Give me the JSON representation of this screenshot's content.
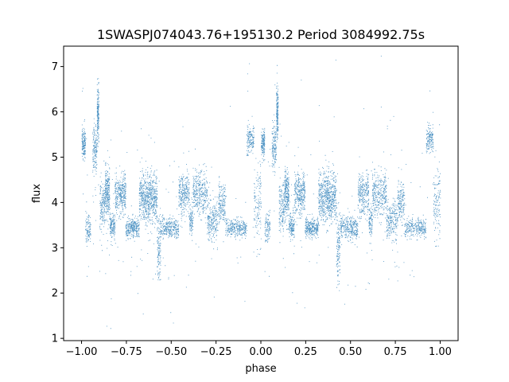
{
  "chart_data": {
    "type": "scatter",
    "title": "1SWASPJ074043.76+195130.2 Period 3084992.75s",
    "xlabel": "phase",
    "ylabel": "flux",
    "xlim": [
      -1.1,
      1.1
    ],
    "ylim": [
      0.95,
      7.45
    ],
    "xticks": [
      -1.0,
      -0.75,
      -0.5,
      -0.25,
      0.0,
      0.25,
      0.5,
      0.75,
      1.0
    ],
    "xtick_labels": [
      "−1.00",
      "−0.75",
      "−0.50",
      "−0.25",
      "0.00",
      "0.25",
      "0.50",
      "0.75",
      "1.00"
    ],
    "yticks": [
      1,
      2,
      3,
      4,
      5,
      6,
      7
    ],
    "ytick_labels": [
      "1",
      "2",
      "3",
      "4",
      "5",
      "6",
      "7"
    ],
    "grid": false,
    "marker_color": "#1f77b4",
    "x_range": [
      -1.0,
      1.0
    ],
    "repeats_with_period": 1.0,
    "clusters": [
      {
        "x": [
          0.0,
          0.02
        ],
        "center": 5.3,
        "spread": 0.3,
        "weight": 0.6
      },
      {
        "x": [
          0.02,
          0.05
        ],
        "center": 3.45,
        "spread": 0.3,
        "weight": 0.4
      },
      {
        "x": [
          0.06,
          0.085
        ],
        "center": 5.2,
        "spread": 0.45,
        "weight": 0.6
      },
      {
        "x": [
          0.085,
          0.095
        ],
        "center": 6.0,
        "spread": 0.55,
        "weight": 0.7
      },
      {
        "x": [
          0.1,
          0.13
        ],
        "center": 3.9,
        "spread": 0.5,
        "weight": 0.6
      },
      {
        "x": [
          0.13,
          0.155
        ],
        "center": 4.2,
        "spread": 0.45,
        "weight": 1.0
      },
      {
        "x": [
          0.155,
          0.185
        ],
        "center": 3.5,
        "spread": 0.25,
        "weight": 0.6
      },
      {
        "x": [
          0.185,
          0.245
        ],
        "center": 4.2,
        "spread": 0.4,
        "weight": 1.3
      },
      {
        "x": [
          0.245,
          0.32
        ],
        "center": 3.45,
        "spread": 0.2,
        "weight": 1.2
      },
      {
        "x": [
          0.32,
          0.36
        ],
        "center": 4.1,
        "spread": 0.45,
        "weight": 1.0
      },
      {
        "x": [
          0.36,
          0.42
        ],
        "center": 4.1,
        "spread": 0.5,
        "weight": 1.6
      },
      {
        "x": [
          0.42,
          0.44
        ],
        "center": 3.0,
        "spread": 0.7,
        "weight": 0.5
      },
      {
        "x": [
          0.44,
          0.54
        ],
        "center": 3.45,
        "spread": 0.22,
        "weight": 1.2
      },
      {
        "x": [
          0.54,
          0.6
        ],
        "center": 4.2,
        "spread": 0.45,
        "weight": 1.1
      },
      {
        "x": [
          0.6,
          0.62
        ],
        "center": 3.6,
        "spread": 0.3,
        "weight": 0.4
      },
      {
        "x": [
          0.62,
          0.7
        ],
        "center": 4.2,
        "spread": 0.45,
        "weight": 1.3
      },
      {
        "x": [
          0.7,
          0.76
        ],
        "center": 3.6,
        "spread": 0.4,
        "weight": 0.9
      },
      {
        "x": [
          0.76,
          0.8
        ],
        "center": 4.0,
        "spread": 0.4,
        "weight": 0.7
      },
      {
        "x": [
          0.8,
          0.92
        ],
        "center": 3.45,
        "spread": 0.18,
        "weight": 1.2
      },
      {
        "x": [
          0.92,
          0.96
        ],
        "center": 5.4,
        "spread": 0.3,
        "weight": 0.6
      },
      {
        "x": [
          0.96,
          1.0
        ],
        "center": 4.0,
        "spread": 0.8,
        "weight": 0.5
      }
    ]
  }
}
